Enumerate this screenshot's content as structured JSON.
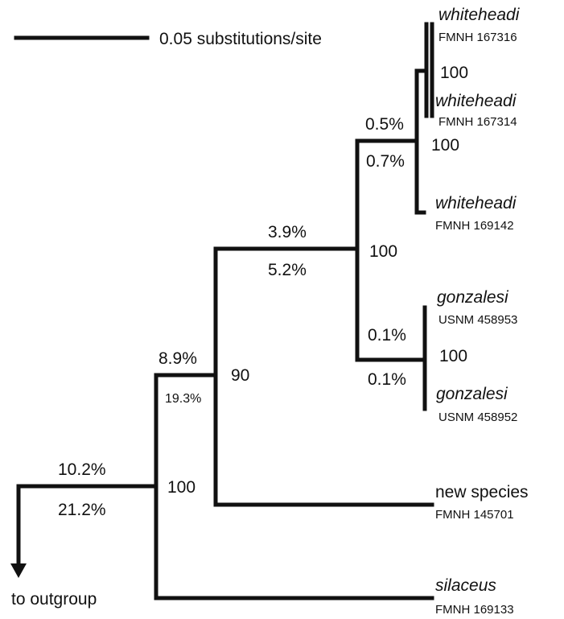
{
  "scale_bar": {
    "label": "0.05 substitutions/site"
  },
  "outgroup": {
    "label": "to outgroup"
  },
  "taxa": [
    {
      "name": "whiteheadi",
      "specimen": "FMNH 167316",
      "italic": true
    },
    {
      "name": "whiteheadi",
      "specimen": "FMNH 167314",
      "italic": true
    },
    {
      "name": "whiteheadi",
      "specimen": "FMNH 169142",
      "italic": true
    },
    {
      "name": "gonzalesi",
      "specimen": "USNM 458953",
      "italic": true
    },
    {
      "name": "gonzalesi",
      "specimen": "USNM 458952",
      "italic": true
    },
    {
      "name": "new species",
      "specimen": "FMNH 145701",
      "italic": false
    },
    {
      "name": "silaceus",
      "specimen": "FMNH 169133",
      "italic": true
    }
  ],
  "bootstrap": {
    "whiteheadi_pair": "100",
    "whiteheadi_clade": "100",
    "whiteheadi_gonzalesi": "100",
    "gonzalesi_pair": "100",
    "ingroup_inner": "90",
    "ingroup_root": "100"
  },
  "divergences": {
    "whiteheadi_branch_upper": "0.5%",
    "whiteheadi_branch_lower": "0.7%",
    "gonzalesi_branch_upper": "0.1%",
    "gonzalesi_branch_lower": "0.1%",
    "wg_branch_upper": "3.9%",
    "wg_branch_lower": "5.2%",
    "inner_branch_upper": "8.9%",
    "inner_branch_lower": "19.3%",
    "root_branch_upper": "10.2%",
    "root_branch_lower": "21.2%"
  }
}
